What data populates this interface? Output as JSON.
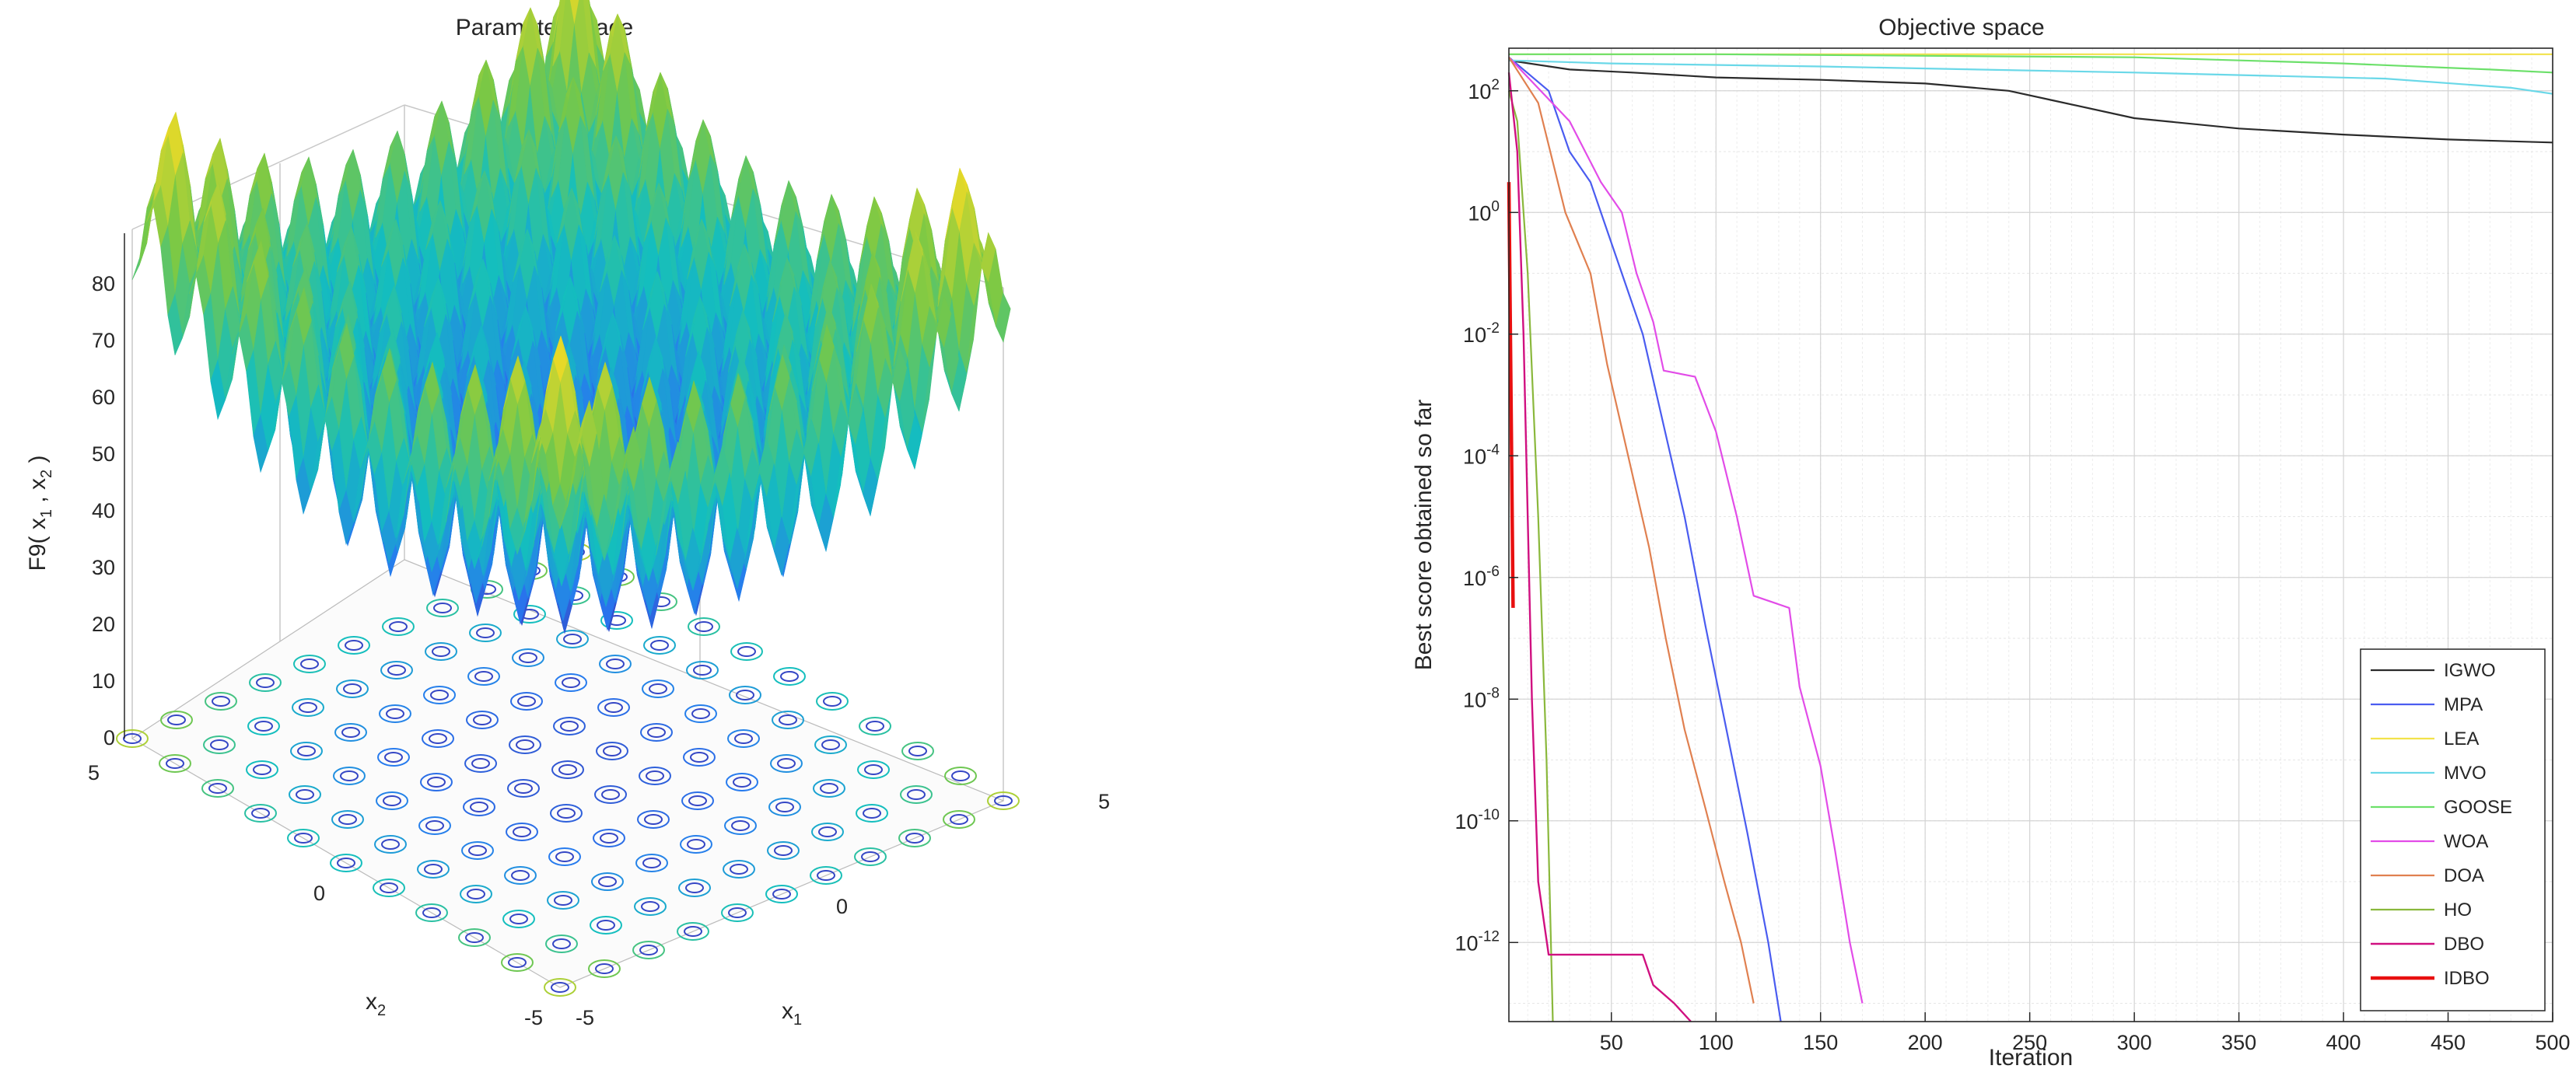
{
  "left_panel": {
    "title": "Parameter space",
    "zlabel": "F9( x",
    "zlabel_sub1": "1",
    "zlabel_mid": " , x",
    "zlabel_sub2": "2",
    "zlabel_end": " )",
    "xlabel": "x",
    "xlabel_sub": "1",
    "ylabel": "x",
    "ylabel_sub": "2",
    "z_ticks": [
      "0",
      "10",
      "20",
      "30",
      "40",
      "50",
      "60",
      "70",
      "80"
    ],
    "x1_ticks": [
      "-5",
      "0",
      "5"
    ],
    "x2_ticks": [
      "-5",
      "0",
      "5"
    ]
  },
  "chart_data": {
    "type": "line",
    "title": "Objective space",
    "xlabel": "Iteration",
    "ylabel": "Best score obtained so far",
    "xlim": [
      1,
      500
    ],
    "ylim_exponent": [
      -13.3,
      2.7
    ],
    "yscale": "log",
    "x_ticks": [
      "50",
      "100",
      "150",
      "200",
      "250",
      "300",
      "350",
      "400",
      "450",
      "500"
    ],
    "x_tick_values": [
      50,
      100,
      150,
      200,
      250,
      300,
      350,
      400,
      450,
      500
    ],
    "y_tick_base": "10",
    "y_tick_exponents": [
      "2",
      "0",
      "-2",
      "-4",
      "-6",
      "-8",
      "-10",
      "-12"
    ],
    "y_tick_values": [
      2,
      0,
      -2,
      -4,
      -6,
      -8,
      -10,
      -12
    ],
    "legend_position": "bottom-right",
    "series": [
      {
        "name": "IGWO",
        "color": "#2b2b2b",
        "width": 2.2,
        "points": [
          [
            1,
            2.5
          ],
          [
            30,
            2.35
          ],
          [
            60,
            2.3
          ],
          [
            100,
            2.22
          ],
          [
            150,
            2.18
          ],
          [
            200,
            2.12
          ],
          [
            240,
            2.0
          ],
          [
            260,
            1.85
          ],
          [
            300,
            1.55
          ],
          [
            350,
            1.38
          ],
          [
            400,
            1.28
          ],
          [
            450,
            1.2
          ],
          [
            500,
            1.15
          ]
        ]
      },
      {
        "name": "MPA",
        "color": "#4a5cf0",
        "width": 2.2,
        "points": [
          [
            1,
            2.55
          ],
          [
            20,
            2.0
          ],
          [
            30,
            1.0
          ],
          [
            40,
            0.5
          ],
          [
            55,
            -1.0
          ],
          [
            65,
            -2.0
          ],
          [
            75,
            -3.5
          ],
          [
            85,
            -5.0
          ],
          [
            95,
            -6.8
          ],
          [
            105,
            -8.5
          ],
          [
            115,
            -10.2
          ],
          [
            125,
            -12.0
          ],
          [
            131,
            -13.3
          ]
        ]
      },
      {
        "name": "LEA",
        "color": "#f2e24a",
        "width": 2.2,
        "points": [
          [
            1,
            2.6
          ],
          [
            100,
            2.6
          ],
          [
            250,
            2.6
          ],
          [
            500,
            2.6
          ]
        ]
      },
      {
        "name": "MVO",
        "color": "#6ad8e8",
        "width": 2.2,
        "points": [
          [
            1,
            2.5
          ],
          [
            50,
            2.45
          ],
          [
            150,
            2.4
          ],
          [
            300,
            2.3
          ],
          [
            420,
            2.2
          ],
          [
            480,
            2.05
          ],
          [
            500,
            1.95
          ]
        ]
      },
      {
        "name": "GOOSE",
        "color": "#6ce06a",
        "width": 2.2,
        "points": [
          [
            1,
            2.6
          ],
          [
            100,
            2.6
          ],
          [
            300,
            2.55
          ],
          [
            400,
            2.45
          ],
          [
            470,
            2.35
          ],
          [
            500,
            2.3
          ]
        ]
      },
      {
        "name": "WOA",
        "color": "#e24ce8",
        "width": 2.2,
        "points": [
          [
            1,
            2.55
          ],
          [
            30,
            1.5
          ],
          [
            45,
            0.5
          ],
          [
            55,
            0.0
          ],
          [
            62,
            -1.0
          ],
          [
            70,
            -1.8
          ],
          [
            75,
            -2.6
          ],
          [
            90,
            -2.7
          ],
          [
            100,
            -3.6
          ],
          [
            110,
            -5.0
          ],
          [
            118,
            -6.3
          ],
          [
            135,
            -6.5
          ],
          [
            140,
            -7.8
          ],
          [
            150,
            -9.1
          ],
          [
            157,
            -10.5
          ],
          [
            164,
            -12.0
          ],
          [
            170,
            -13.0
          ]
        ]
      },
      {
        "name": "DOA",
        "color": "#e08050",
        "width": 2.2,
        "points": [
          [
            1,
            2.55
          ],
          [
            15,
            1.8
          ],
          [
            28,
            0.0
          ],
          [
            40,
            -1.0
          ],
          [
            48,
            -2.5
          ],
          [
            58,
            -4.0
          ],
          [
            68,
            -5.5
          ],
          [
            76,
            -7.0
          ],
          [
            85,
            -8.5
          ],
          [
            95,
            -9.8
          ],
          [
            104,
            -11.0
          ],
          [
            112,
            -12.0
          ],
          [
            118,
            -13.0
          ]
        ]
      },
      {
        "name": "HO",
        "color": "#8ab83c",
        "width": 2.2,
        "points": [
          [
            1,
            2.0
          ],
          [
            5,
            1.5
          ],
          [
            10,
            -1.0
          ],
          [
            15,
            -5.0
          ],
          [
            19,
            -9.0
          ],
          [
            22,
            -13.3
          ]
        ]
      },
      {
        "name": "DBO",
        "color": "#d01080",
        "width": 2.4,
        "points": [
          [
            1,
            2.3
          ],
          [
            5,
            1.0
          ],
          [
            8,
            -2.0
          ],
          [
            10,
            -5.0
          ],
          [
            12,
            -8.0
          ],
          [
            15,
            -11.0
          ],
          [
            20,
            -12.2
          ],
          [
            65,
            -12.2
          ],
          [
            70,
            -12.7
          ],
          [
            80,
            -13.0
          ],
          [
            88,
            -13.3
          ]
        ]
      },
      {
        "name": "IDBO",
        "color": "#e81010",
        "width": 4.5,
        "points": [
          [
            1,
            0.5
          ],
          [
            2,
            -3.0
          ],
          [
            3,
            -6.5
          ]
        ]
      }
    ]
  }
}
